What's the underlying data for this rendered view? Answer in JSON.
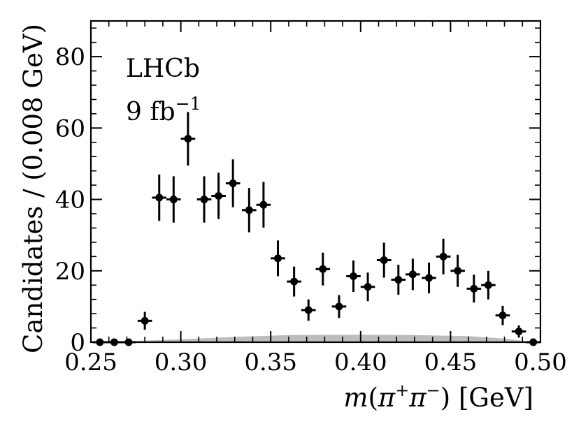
{
  "chart_data": {
    "type": "scatter",
    "experiment_label": "LHCb",
    "luminosity_label": {
      "base": "9 fb",
      "exponent": "−1"
    },
    "xlabel": {
      "m": "m",
      "open": "(",
      "pi1": "π",
      "sup1": "+",
      "pi2": "π",
      "sup2": "−",
      "close": ")",
      "unit": " [GeV]"
    },
    "ylabel": "Candidates / (0.008 GeV)",
    "xlim": [
      0.25,
      0.5
    ],
    "ylim": [
      0,
      90
    ],
    "xticks": [
      0.25,
      0.3,
      0.35,
      0.4,
      0.45,
      0.5
    ],
    "xtick_labels": [
      "0.25",
      "0.30",
      "0.35",
      "0.40",
      "0.45",
      "0.50"
    ],
    "yticks": [
      0,
      20,
      40,
      60,
      80
    ],
    "ytick_labels": [
      "0",
      "20",
      "40",
      "60",
      "80"
    ],
    "bin_width": 0.008,
    "grid": false,
    "points": [
      {
        "x": 0.255,
        "y": 0,
        "err": 0
      },
      {
        "x": 0.263,
        "y": 0,
        "err": 0
      },
      {
        "x": 0.271,
        "y": 0,
        "err": 0
      },
      {
        "x": 0.28,
        "y": 6,
        "err": 2.5
      },
      {
        "x": 0.288,
        "y": 40.5,
        "err": 6.5
      },
      {
        "x": 0.296,
        "y": 40,
        "err": 6.5
      },
      {
        "x": 0.304,
        "y": 57,
        "err": 7.5
      },
      {
        "x": 0.313,
        "y": 40,
        "err": 6.5
      },
      {
        "x": 0.321,
        "y": 41,
        "err": 6.5
      },
      {
        "x": 0.329,
        "y": 44.5,
        "err": 6.7
      },
      {
        "x": 0.338,
        "y": 37,
        "err": 6.2
      },
      {
        "x": 0.346,
        "y": 38.5,
        "err": 6.4
      },
      {
        "x": 0.354,
        "y": 23.5,
        "err": 5
      },
      {
        "x": 0.363,
        "y": 17,
        "err": 4.2
      },
      {
        "x": 0.371,
        "y": 9,
        "err": 3
      },
      {
        "x": 0.379,
        "y": 20.5,
        "err": 4.6
      },
      {
        "x": 0.388,
        "y": 10,
        "err": 3.2
      },
      {
        "x": 0.396,
        "y": 18.5,
        "err": 4.4
      },
      {
        "x": 0.404,
        "y": 15.5,
        "err": 4
      },
      {
        "x": 0.413,
        "y": 23,
        "err": 4.9
      },
      {
        "x": 0.421,
        "y": 17.5,
        "err": 4.2
      },
      {
        "x": 0.429,
        "y": 19,
        "err": 4.4
      },
      {
        "x": 0.438,
        "y": 18,
        "err": 4.3
      },
      {
        "x": 0.446,
        "y": 24,
        "err": 5
      },
      {
        "x": 0.454,
        "y": 20,
        "err": 4.5
      },
      {
        "x": 0.463,
        "y": 15,
        "err": 3.9
      },
      {
        "x": 0.471,
        "y": 16,
        "err": 4
      },
      {
        "x": 0.479,
        "y": 7.5,
        "err": 2.7
      },
      {
        "x": 0.488,
        "y": 3,
        "err": 1.7
      },
      {
        "x": 0.496,
        "y": 0,
        "err": 0
      }
    ],
    "background_band": {
      "color": "#bdbdbd",
      "x": [
        0.25,
        0.27,
        0.3,
        0.33,
        0.36,
        0.4,
        0.43,
        0.46,
        0.48,
        0.49,
        0.5
      ],
      "y": [
        0.1,
        0.3,
        0.8,
        1.5,
        2.0,
        2.1,
        2.0,
        1.7,
        1.0,
        0.4,
        0.0
      ]
    },
    "marker_color": "#000000"
  }
}
